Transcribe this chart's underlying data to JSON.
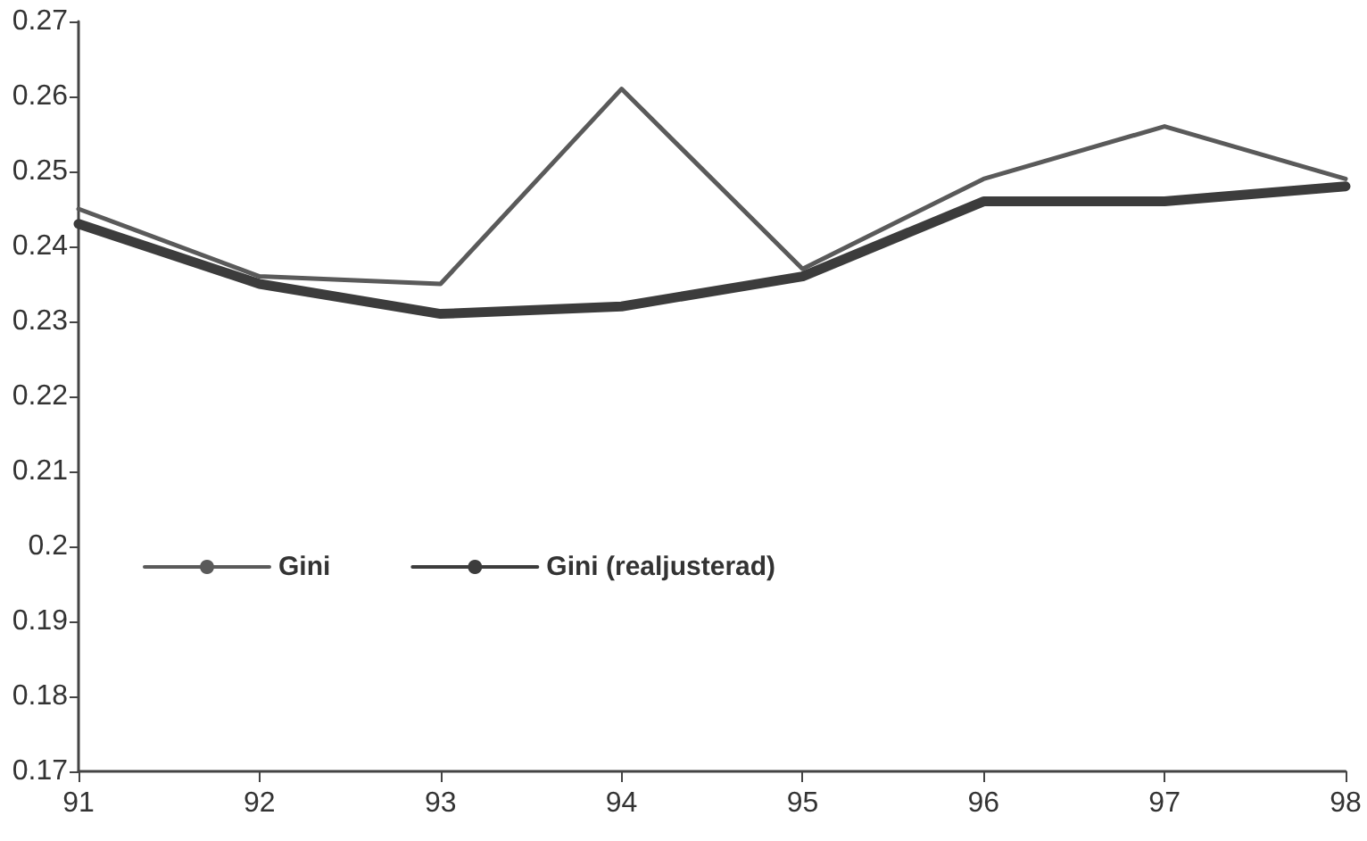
{
  "chart_data": {
    "type": "line",
    "x": [
      91,
      92,
      93,
      94,
      95,
      96,
      97,
      98
    ],
    "series": [
      {
        "name": "Gini",
        "color": "#5a5a5a",
        "values": [
          0.245,
          0.236,
          0.235,
          0.261,
          0.237,
          0.249,
          0.256,
          0.249
        ]
      },
      {
        "name": "Gini (realjusterad)",
        "color": "#3c3c3c",
        "values": [
          0.243,
          0.235,
          0.231,
          0.232,
          0.236,
          0.246,
          0.246,
          0.248
        ]
      }
    ],
    "xlim": [
      91,
      98
    ],
    "xticks": [
      91,
      92,
      93,
      94,
      95,
      96,
      97,
      98
    ],
    "ylim": [
      0.17,
      0.27
    ],
    "yticks": [
      0.17,
      0.18,
      0.19,
      0.2,
      0.21,
      0.22,
      0.23,
      0.24,
      0.25,
      0.26,
      0.27
    ],
    "grid": false,
    "legend": "left",
    "marker": "none",
    "line_style": "solid"
  }
}
